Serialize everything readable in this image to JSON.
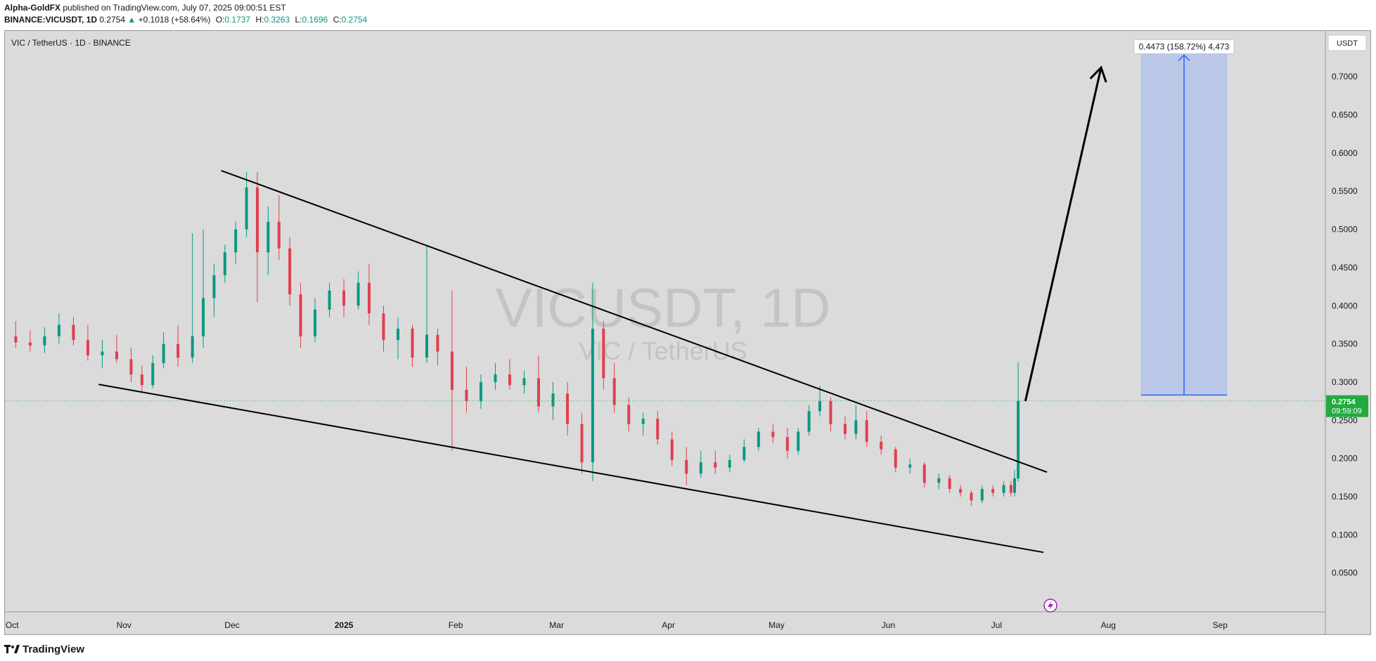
{
  "header": {
    "author": "Alpha-GoldFX",
    "published": "published on TradingView.com, July 07, 2025 09:00:51 EST",
    "symbol": "BINANCE:VICUSDT, 1D",
    "price": "0.2754",
    "change": "+0.1018 (+58.64%)",
    "o_label": "O:",
    "o_value": "0.1737",
    "h_label": "H:",
    "h_value": "0.3263",
    "l_label": "L:",
    "l_value": "0.1696",
    "c_label": "C:",
    "c_value": "0.2754"
  },
  "pane": {
    "title": "VIC / TetherUS · 1D · BINANCE",
    "watermark_main": "VICUSDT, 1D",
    "watermark_sub": "VIC / TetherUS"
  },
  "footer": {
    "brand": "TradingView"
  },
  "colors": {
    "up": "#089981",
    "down": "#e03f4f",
    "background": "#dbdbdb",
    "target_zone": "#b8c6e8",
    "target_line": "#2962ff",
    "price_tag": "#22ab3f"
  },
  "chart_data": {
    "type": "candlestick",
    "title": "VICUSDT, 1D",
    "currency": "USDT",
    "y_ticks": [
      "0.0500",
      "0.1000",
      "0.1500",
      "0.2000",
      "0.2500",
      "0.3000",
      "0.3500",
      "0.4000",
      "0.4500",
      "0.5000",
      "0.5500",
      "0.6000",
      "0.6500",
      "0.7000"
    ],
    "x_ticks": [
      {
        "label": "Oct",
        "date": "2024-10-01"
      },
      {
        "label": "Nov",
        "date": "2024-11-01"
      },
      {
        "label": "Dec",
        "date": "2024-12-01"
      },
      {
        "label": "2025",
        "date": "2025-01-01"
      },
      {
        "label": "Feb",
        "date": "2025-02-01"
      },
      {
        "label": "Mar",
        "date": "2025-03-01"
      },
      {
        "label": "Apr",
        "date": "2025-04-01"
      },
      {
        "label": "May",
        "date": "2025-05-01"
      },
      {
        "label": "Jun",
        "date": "2025-06-01"
      },
      {
        "label": "Jul",
        "date": "2025-07-01"
      },
      {
        "label": "Aug",
        "date": "2025-08-01"
      },
      {
        "label": "Sep",
        "date": "2025-09-01"
      }
    ],
    "ylim": [
      0.0,
      0.76
    ],
    "xlim": [
      "2024-09-29",
      "2025-09-30"
    ],
    "last_price": {
      "value": 0.2754,
      "label": "0.2754",
      "countdown": "09:59:09"
    },
    "candles": [
      {
        "date": "2024-10-02",
        "o": 0.36,
        "h": 0.38,
        "l": 0.345,
        "c": 0.352
      },
      {
        "date": "2024-10-06",
        "o": 0.352,
        "h": 0.368,
        "l": 0.34,
        "c": 0.348
      },
      {
        "date": "2024-10-10",
        "o": 0.348,
        "h": 0.372,
        "l": 0.338,
        "c": 0.36
      },
      {
        "date": "2024-10-14",
        "o": 0.36,
        "h": 0.39,
        "l": 0.35,
        "c": 0.375
      },
      {
        "date": "2024-10-18",
        "o": 0.375,
        "h": 0.385,
        "l": 0.348,
        "c": 0.355
      },
      {
        "date": "2024-10-22",
        "o": 0.355,
        "h": 0.375,
        "l": 0.328,
        "c": 0.335
      },
      {
        "date": "2024-10-26",
        "o": 0.335,
        "h": 0.355,
        "l": 0.318,
        "c": 0.34
      },
      {
        "date": "2024-10-30",
        "o": 0.34,
        "h": 0.362,
        "l": 0.325,
        "c": 0.33
      },
      {
        "date": "2024-11-03",
        "o": 0.33,
        "h": 0.345,
        "l": 0.3,
        "c": 0.31
      },
      {
        "date": "2024-11-06",
        "o": 0.31,
        "h": 0.322,
        "l": 0.288,
        "c": 0.296
      },
      {
        "date": "2024-11-09",
        "o": 0.296,
        "h": 0.335,
        "l": 0.292,
        "c": 0.325
      },
      {
        "date": "2024-11-12",
        "o": 0.325,
        "h": 0.365,
        "l": 0.318,
        "c": 0.35
      },
      {
        "date": "2024-11-16",
        "o": 0.35,
        "h": 0.375,
        "l": 0.32,
        "c": 0.332
      },
      {
        "date": "2024-11-20",
        "o": 0.332,
        "h": 0.495,
        "l": 0.325,
        "c": 0.36
      },
      {
        "date": "2024-11-23",
        "o": 0.36,
        "h": 0.5,
        "l": 0.345,
        "c": 0.41
      },
      {
        "date": "2024-11-26",
        "o": 0.41,
        "h": 0.455,
        "l": 0.385,
        "c": 0.44
      },
      {
        "date": "2024-11-29",
        "o": 0.44,
        "h": 0.48,
        "l": 0.43,
        "c": 0.47
      },
      {
        "date": "2024-12-02",
        "o": 0.47,
        "h": 0.51,
        "l": 0.455,
        "c": 0.5
      },
      {
        "date": "2024-12-05",
        "o": 0.5,
        "h": 0.575,
        "l": 0.49,
        "c": 0.555
      },
      {
        "date": "2024-12-08",
        "o": 0.555,
        "h": 0.575,
        "l": 0.405,
        "c": 0.47
      },
      {
        "date": "2024-12-11",
        "o": 0.47,
        "h": 0.53,
        "l": 0.44,
        "c": 0.51
      },
      {
        "date": "2024-12-14",
        "o": 0.51,
        "h": 0.545,
        "l": 0.46,
        "c": 0.475
      },
      {
        "date": "2024-12-17",
        "o": 0.475,
        "h": 0.49,
        "l": 0.4,
        "c": 0.415
      },
      {
        "date": "2024-12-20",
        "o": 0.415,
        "h": 0.43,
        "l": 0.345,
        "c": 0.36
      },
      {
        "date": "2024-12-24",
        "o": 0.36,
        "h": 0.41,
        "l": 0.352,
        "c": 0.395
      },
      {
        "date": "2024-12-28",
        "o": 0.395,
        "h": 0.43,
        "l": 0.385,
        "c": 0.42
      },
      {
        "date": "2025-01-01",
        "o": 0.42,
        "h": 0.435,
        "l": 0.385,
        "c": 0.4
      },
      {
        "date": "2025-01-05",
        "o": 0.4,
        "h": 0.445,
        "l": 0.395,
        "c": 0.43
      },
      {
        "date": "2025-01-08",
        "o": 0.43,
        "h": 0.455,
        "l": 0.375,
        "c": 0.39
      },
      {
        "date": "2025-01-12",
        "o": 0.39,
        "h": 0.4,
        "l": 0.34,
        "c": 0.355
      },
      {
        "date": "2025-01-16",
        "o": 0.355,
        "h": 0.385,
        "l": 0.33,
        "c": 0.37
      },
      {
        "date": "2025-01-20",
        "o": 0.37,
        "h": 0.375,
        "l": 0.32,
        "c": 0.332
      },
      {
        "date": "2025-01-24",
        "o": 0.332,
        "h": 0.48,
        "l": 0.325,
        "c": 0.362
      },
      {
        "date": "2025-01-27",
        "o": 0.362,
        "h": 0.37,
        "l": 0.322,
        "c": 0.34
      },
      {
        "date": "2025-01-31",
        "o": 0.34,
        "h": 0.42,
        "l": 0.21,
        "c": 0.29
      },
      {
        "date": "2025-02-04",
        "o": 0.29,
        "h": 0.32,
        "l": 0.26,
        "c": 0.275
      },
      {
        "date": "2025-02-08",
        "o": 0.275,
        "h": 0.31,
        "l": 0.265,
        "c": 0.3
      },
      {
        "date": "2025-02-12",
        "o": 0.3,
        "h": 0.325,
        "l": 0.29,
        "c": 0.31
      },
      {
        "date": "2025-02-16",
        "o": 0.31,
        "h": 0.33,
        "l": 0.29,
        "c": 0.296
      },
      {
        "date": "2025-02-20",
        "o": 0.296,
        "h": 0.315,
        "l": 0.285,
        "c": 0.305
      },
      {
        "date": "2025-02-24",
        "o": 0.305,
        "h": 0.335,
        "l": 0.26,
        "c": 0.268
      },
      {
        "date": "2025-02-28",
        "o": 0.268,
        "h": 0.3,
        "l": 0.25,
        "c": 0.285
      },
      {
        "date": "2025-03-04",
        "o": 0.285,
        "h": 0.3,
        "l": 0.23,
        "c": 0.245
      },
      {
        "date": "2025-03-08",
        "o": 0.245,
        "h": 0.26,
        "l": 0.18,
        "c": 0.195
      },
      {
        "date": "2025-03-11",
        "o": 0.195,
        "h": 0.43,
        "l": 0.17,
        "c": 0.37
      },
      {
        "date": "2025-03-14",
        "o": 0.37,
        "h": 0.38,
        "l": 0.29,
        "c": 0.305
      },
      {
        "date": "2025-03-17",
        "o": 0.305,
        "h": 0.325,
        "l": 0.26,
        "c": 0.27
      },
      {
        "date": "2025-03-21",
        "o": 0.27,
        "h": 0.28,
        "l": 0.235,
        "c": 0.245
      },
      {
        "date": "2025-03-25",
        "o": 0.245,
        "h": 0.26,
        "l": 0.23,
        "c": 0.252
      },
      {
        "date": "2025-03-29",
        "o": 0.252,
        "h": 0.262,
        "l": 0.218,
        "c": 0.225
      },
      {
        "date": "2025-04-02",
        "o": 0.225,
        "h": 0.235,
        "l": 0.19,
        "c": 0.198
      },
      {
        "date": "2025-04-06",
        "o": 0.198,
        "h": 0.215,
        "l": 0.165,
        "c": 0.18
      },
      {
        "date": "2025-04-10",
        "o": 0.18,
        "h": 0.21,
        "l": 0.175,
        "c": 0.195
      },
      {
        "date": "2025-04-14",
        "o": 0.195,
        "h": 0.21,
        "l": 0.18,
        "c": 0.188
      },
      {
        "date": "2025-04-18",
        "o": 0.188,
        "h": 0.205,
        "l": 0.182,
        "c": 0.198
      },
      {
        "date": "2025-04-22",
        "o": 0.198,
        "h": 0.225,
        "l": 0.195,
        "c": 0.215
      },
      {
        "date": "2025-04-26",
        "o": 0.215,
        "h": 0.24,
        "l": 0.21,
        "c": 0.235
      },
      {
        "date": "2025-04-30",
        "o": 0.235,
        "h": 0.245,
        "l": 0.22,
        "c": 0.228
      },
      {
        "date": "2025-05-04",
        "o": 0.228,
        "h": 0.24,
        "l": 0.2,
        "c": 0.21
      },
      {
        "date": "2025-05-07",
        "o": 0.21,
        "h": 0.24,
        "l": 0.205,
        "c": 0.235
      },
      {
        "date": "2025-05-10",
        "o": 0.235,
        "h": 0.27,
        "l": 0.23,
        "c": 0.262
      },
      {
        "date": "2025-05-13",
        "o": 0.262,
        "h": 0.295,
        "l": 0.255,
        "c": 0.275
      },
      {
        "date": "2025-05-16",
        "o": 0.275,
        "h": 0.28,
        "l": 0.235,
        "c": 0.245
      },
      {
        "date": "2025-05-20",
        "o": 0.245,
        "h": 0.255,
        "l": 0.225,
        "c": 0.232
      },
      {
        "date": "2025-05-23",
        "o": 0.232,
        "h": 0.27,
        "l": 0.225,
        "c": 0.25
      },
      {
        "date": "2025-05-26",
        "o": 0.25,
        "h": 0.262,
        "l": 0.215,
        "c": 0.222
      },
      {
        "date": "2025-05-30",
        "o": 0.222,
        "h": 0.23,
        "l": 0.205,
        "c": 0.212
      },
      {
        "date": "2025-06-03",
        "o": 0.212,
        "h": 0.215,
        "l": 0.182,
        "c": 0.188
      },
      {
        "date": "2025-06-07",
        "o": 0.188,
        "h": 0.2,
        "l": 0.18,
        "c": 0.192
      },
      {
        "date": "2025-06-11",
        "o": 0.192,
        "h": 0.195,
        "l": 0.162,
        "c": 0.168
      },
      {
        "date": "2025-06-15",
        "o": 0.168,
        "h": 0.18,
        "l": 0.16,
        "c": 0.174
      },
      {
        "date": "2025-06-18",
        "o": 0.174,
        "h": 0.178,
        "l": 0.155,
        "c": 0.16
      },
      {
        "date": "2025-06-21",
        "o": 0.16,
        "h": 0.165,
        "l": 0.15,
        "c": 0.155
      },
      {
        "date": "2025-06-24",
        "o": 0.155,
        "h": 0.158,
        "l": 0.138,
        "c": 0.145
      },
      {
        "date": "2025-06-27",
        "o": 0.145,
        "h": 0.165,
        "l": 0.142,
        "c": 0.16
      },
      {
        "date": "2025-06-30",
        "o": 0.16,
        "h": 0.165,
        "l": 0.15,
        "c": 0.155
      },
      {
        "date": "2025-07-03",
        "o": 0.155,
        "h": 0.17,
        "l": 0.15,
        "c": 0.165
      },
      {
        "date": "2025-07-05",
        "o": 0.165,
        "h": 0.17,
        "l": 0.15,
        "c": 0.155
      },
      {
        "date": "2025-07-06",
        "o": 0.155,
        "h": 0.185,
        "l": 0.15,
        "c": 0.174
      },
      {
        "date": "2025-07-07",
        "o": 0.1737,
        "h": 0.3263,
        "l": 0.1696,
        "c": 0.2754
      }
    ],
    "trendlines": [
      {
        "name": "upper-trendline",
        "from": {
          "date": "2024-11-28",
          "value": 0.577
        },
        "to": {
          "date": "2025-07-15",
          "value": 0.182
        }
      },
      {
        "name": "lower-trendline",
        "from": {
          "date": "2024-10-25",
          "value": 0.297
        },
        "to": {
          "date": "2025-07-14",
          "value": 0.077
        }
      }
    ],
    "projection_arrow": {
      "from": {
        "date": "2025-07-09",
        "value": 0.275
      },
      "to": {
        "date": "2025-07-30",
        "value": 0.712
      }
    },
    "target_zone": {
      "from_date": "2025-08-10",
      "to_date": "2025-09-03",
      "bottom": 0.283,
      "top": 0.7302,
      "label": "0.4473 (158.72%) 4,473"
    }
  }
}
